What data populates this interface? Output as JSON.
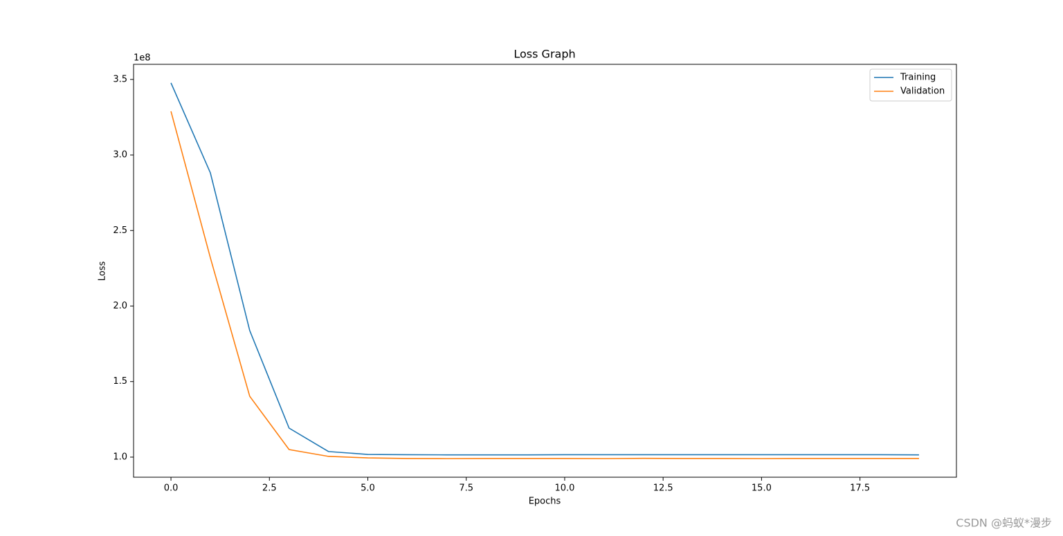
{
  "chart_data": {
    "type": "line",
    "title": "Loss Graph",
    "x_label": "Epochs",
    "y_label": "Loss",
    "y_offset_label": "1e8",
    "x": [
      0,
      1,
      2,
      3,
      4,
      5,
      6,
      7,
      8,
      9,
      10,
      11,
      12,
      13,
      14,
      15,
      16,
      17,
      18,
      19
    ],
    "series": [
      {
        "name": "Training",
        "color": "#1f77b4",
        "values": [
          3.477,
          2.882,
          1.838,
          1.192,
          1.037,
          1.018,
          1.016,
          1.015,
          1.015,
          1.015,
          1.016,
          1.016,
          1.016,
          1.016,
          1.016,
          1.016,
          1.016,
          1.016,
          1.016,
          1.015
        ]
      },
      {
        "name": "Validation",
        "color": "#ff7f0e",
        "values": [
          3.289,
          2.32,
          1.403,
          1.05,
          1.005,
          0.995,
          0.991,
          0.99,
          0.991,
          0.991,
          0.991,
          0.99,
          0.992,
          0.991,
          0.991,
          0.99,
          0.991,
          0.991,
          0.991,
          0.991
        ]
      }
    ],
    "xlim": [
      -0.95,
      19.95
    ],
    "xticks": [
      {
        "value": 0,
        "label": "0.0"
      },
      2.5,
      {
        "value": 5,
        "label": "5.0"
      },
      7.5,
      {
        "value": 10,
        "label": "10.0"
      },
      12.5,
      {
        "value": 15,
        "label": "15.0"
      },
      17.5
    ],
    "ylim": [
      0.867,
      3.6
    ],
    "yticks": [
      {
        "value": 1,
        "label": "1.0"
      },
      1.5,
      {
        "value": 2,
        "label": "2.0"
      },
      2.5,
      {
        "value": 3,
        "label": "3.0"
      },
      3.5
    ],
    "legend": "upper right",
    "grid": false
  },
  "watermark": "CSDN @蚂蚁*漫步"
}
